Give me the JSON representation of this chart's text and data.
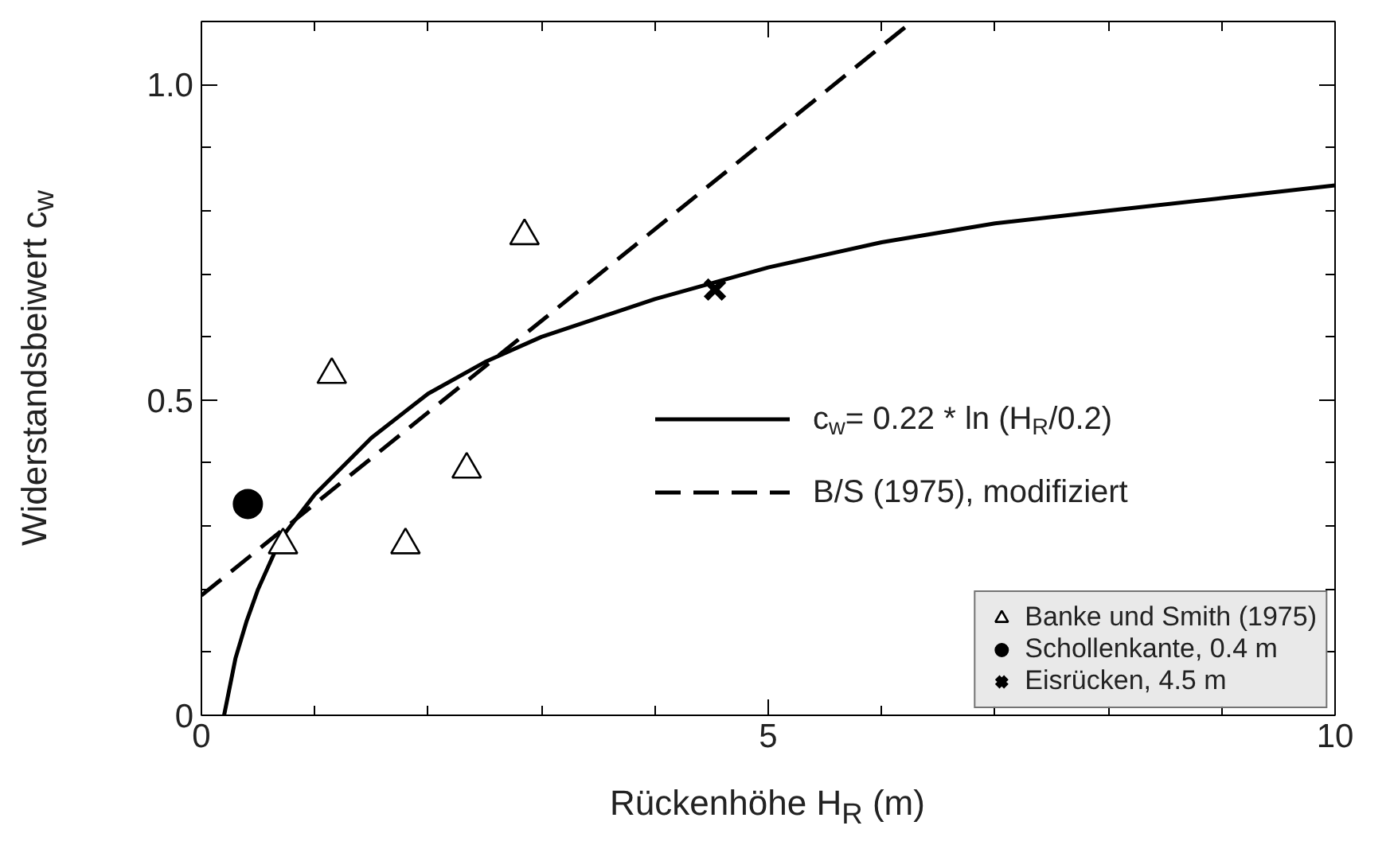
{
  "chart_data": {
    "type": "line",
    "xlabel": "Rückenhöhe H$_{R}$ (m)",
    "ylabel": "Widerstandsbeiwert c$_{w}$",
    "xlim": [
      0,
      10
    ],
    "ylim": [
      0,
      1.1
    ],
    "xticks": [
      0,
      {
        "value": 1,
        "label": null
      },
      {
        "value": 2,
        "label": null
      },
      {
        "value": 3,
        "label": null
      },
      {
        "value": 4,
        "label": null
      },
      5,
      {
        "value": 6,
        "label": null
      },
      {
        "value": 7,
        "label": null
      },
      {
        "value": 8,
        "label": null
      },
      {
        "value": 9,
        "label": null
      },
      10
    ],
    "yticks": [
      0,
      {
        "value": 0.1,
        "label": null
      },
      {
        "value": 0.2,
        "label": null
      },
      {
        "value": 0.3,
        "label": null
      },
      {
        "value": 0.4,
        "label": null
      },
      0.5,
      {
        "value": 0.6,
        "label": null
      },
      {
        "value": 0.7,
        "label": null
      },
      {
        "value": 0.8,
        "label": null
      },
      {
        "value": 0.9,
        "label": null
      },
      {
        "value": 1.0,
        "label": "1.0"
      }
    ],
    "grid": false,
    "legend": "bottom right",
    "series": [
      {
        "name": "c$_{w}$= 0.22 * ln (H$_{R}$/0.2)",
        "line_style": "solid",
        "color": "#000000",
        "x": [
          0.2,
          0.3,
          0.4,
          0.5,
          0.7,
          1,
          1.5,
          2,
          2.5,
          3,
          4,
          5,
          6,
          7,
          8,
          9,
          10
        ],
        "values": [
          0,
          0.09,
          0.15,
          0.2,
          0.28,
          0.35,
          0.44,
          0.51,
          0.56,
          0.6,
          0.66,
          0.71,
          0.75,
          0.78,
          0.8,
          0.82,
          0.84
        ]
      },
      {
        "name": "B/S (1975), modifiziert",
        "line_style": "dashed",
        "color": "#000000",
        "x": [
          0,
          6.27
        ],
        "values": [
          0.19,
          1.1
        ]
      },
      {
        "name": "Banke und Smith (1975)",
        "type": "scatter",
        "marker": "triangle",
        "color": "#000000",
        "x": [
          0.72,
          1.15,
          1.8,
          2.34,
          2.85
        ],
        "values": [
          0.27,
          0.54,
          0.27,
          0.39,
          0.76
        ]
      },
      {
        "name": "Schollenkante, 0.4 m",
        "type": "scatter",
        "marker": "circle",
        "color": "#000000",
        "x": [
          0.41
        ],
        "values": [
          0.335
        ]
      },
      {
        "name": "Eisrücken, 4.5 m",
        "type": "scatter",
        "marker": "cross",
        "color": "#000000",
        "x": [
          4.53
        ],
        "values": [
          0.675
        ]
      }
    ]
  }
}
